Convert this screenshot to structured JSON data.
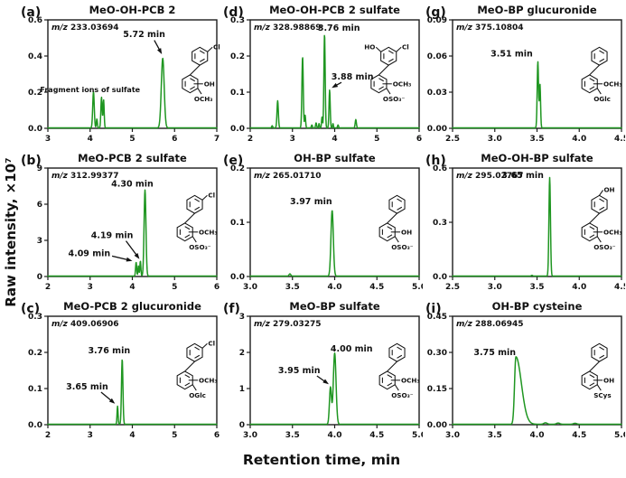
{
  "figure": {
    "ylabel": "Raw intensity, ×10⁷",
    "xlabel": "Retention time, min",
    "colors": {
      "trace": "#1f9621",
      "axis": "#1c1c1c",
      "text": "#111111",
      "background": "#ffffff"
    }
  },
  "chart_data": [
    {
      "panel": "(a)",
      "type": "line",
      "title": "MeO-OH-PCB 2",
      "mz_label": "m/z",
      "mz_value": "233.03694",
      "xlim": [
        3,
        7
      ],
      "ylim": [
        0,
        0.6
      ],
      "xticks": [
        "3",
        "4",
        "5",
        "6",
        "7"
      ],
      "yticks": [
        "0.0",
        "0.2",
        "0.4",
        "0.6"
      ],
      "peaks": [
        {
          "rt": 4.08,
          "h": 0.2,
          "w": 0.018
        },
        {
          "rt": 4.16,
          "h": 0.05,
          "w": 0.012
        },
        {
          "rt": 4.27,
          "h": 0.17,
          "w": 0.015
        },
        {
          "rt": 4.32,
          "h": 0.155,
          "w": 0.013
        },
        {
          "rt": 5.72,
          "h": 0.385,
          "w": 0.034
        }
      ],
      "annotations": [
        {
          "text": "5.72 min",
          "tx": 5.28,
          "ty": 0.52,
          "arrow": [
            5.52,
            0.487,
            5.7,
            0.41
          ]
        },
        {
          "text": "Fragment ions of sulfate",
          "tx": 4.0,
          "ty": 0.215,
          "small": true
        }
      ],
      "structure": {
        "top_right": "Cl",
        "ring_right": "OH",
        "ring_bottom": "OCH₃"
      },
      "spos": [
        0.88,
        0.5
      ]
    },
    {
      "panel": "(d)",
      "type": "line",
      "title": "MeO-OH-PCB 2 sulfate",
      "mz_label": "m/z",
      "mz_value": "328.98869",
      "xlim": [
        2,
        6
      ],
      "ylim": [
        0,
        0.3
      ],
      "xticks": [
        "2",
        "3",
        "4",
        "5",
        "6"
      ],
      "yticks": [
        "0.0",
        "0.1",
        "0.2",
        "0.3"
      ],
      "peaks": [
        {
          "rt": 2.52,
          "h": 0.006,
          "w": 0.012
        },
        {
          "rt": 2.65,
          "h": 0.075,
          "w": 0.016
        },
        {
          "rt": 3.24,
          "h": 0.197,
          "w": 0.016
        },
        {
          "rt": 3.3,
          "h": 0.035,
          "w": 0.012
        },
        {
          "rt": 3.46,
          "h": 0.008,
          "w": 0.012
        },
        {
          "rt": 3.56,
          "h": 0.014,
          "w": 0.012
        },
        {
          "rt": 3.63,
          "h": 0.012,
          "w": 0.01
        },
        {
          "rt": 3.7,
          "h": 0.03,
          "w": 0.011
        },
        {
          "rt": 3.76,
          "h": 0.26,
          "w": 0.015
        },
        {
          "rt": 3.88,
          "h": 0.105,
          "w": 0.014
        },
        {
          "rt": 3.96,
          "h": 0.012,
          "w": 0.01
        },
        {
          "rt": 4.08,
          "h": 0.008,
          "w": 0.012
        },
        {
          "rt": 4.5,
          "h": 0.023,
          "w": 0.014
        }
      ],
      "annotations": [
        {
          "text": "3.76 min",
          "tx": 4.1,
          "ty": 0.277
        },
        {
          "text": "3.88 min",
          "tx": 4.42,
          "ty": 0.143,
          "arrow": [
            4.16,
            0.127,
            3.93,
            0.112
          ]
        }
      ],
      "structure": {
        "top_left": "HO",
        "top_right": "Cl",
        "ring_right": "OCH₃",
        "ring_bottom": "OSO₃⁻"
      },
      "spos": [
        0.8,
        0.5
      ]
    },
    {
      "panel": "(g)",
      "type": "line",
      "title": "MeO-BP glucuronide",
      "mz_label": "m/z",
      "mz_value": "375.10804",
      "xlim": [
        2.5,
        4.5
      ],
      "ylim": [
        0,
        0.09
      ],
      "xticks": [
        "2.5",
        "3.0",
        "3.5",
        "4.0",
        "4.5"
      ],
      "yticks": [
        "0.00",
        "0.03",
        "0.06",
        "0.09"
      ],
      "peaks": [
        {
          "rt": 3.51,
          "h": 0.055,
          "w": 0.008
        },
        {
          "rt": 3.535,
          "h": 0.036,
          "w": 0.007
        }
      ],
      "annotations": [
        {
          "text": "3.51 min",
          "tx": 3.2,
          "ty": 0.062
        }
      ],
      "structure": {
        "ring_right": "OCH₃",
        "ring_bottom": "OGlc"
      },
      "spos": [
        0.85,
        0.5
      ]
    },
    {
      "panel": "(b)",
      "type": "line",
      "title": "MeO-PCB 2 sulfate",
      "mz_label": "m/z",
      "mz_value": "312.99377",
      "xlim": [
        2,
        6
      ],
      "ylim": [
        0,
        9
      ],
      "xticks": [
        "2",
        "3",
        "4",
        "5",
        "6"
      ],
      "yticks": [
        "0",
        "3",
        "6",
        "9"
      ],
      "peaks": [
        {
          "rt": 4.09,
          "h": 1.15,
          "w": 0.013
        },
        {
          "rt": 4.145,
          "h": 0.85,
          "w": 0.011
        },
        {
          "rt": 4.19,
          "h": 1.25,
          "w": 0.012
        },
        {
          "rt": 4.3,
          "h": 7.15,
          "w": 0.022
        }
      ],
      "annotations": [
        {
          "text": "4.30 min",
          "tx": 4.0,
          "ty": 7.7
        },
        {
          "text": "4.19 min",
          "tx": 3.52,
          "ty": 3.4,
          "arrow": [
            3.85,
            2.95,
            4.17,
            1.45
          ]
        },
        {
          "text": "4.09 min",
          "tx": 2.98,
          "ty": 1.9,
          "arrow": [
            3.52,
            1.7,
            4.0,
            1.3
          ]
        }
      ],
      "structure": {
        "top_right": "Cl",
        "ring_right": "OCH₃",
        "ring_bottom": "OSO₃⁻"
      },
      "spos": [
        0.85,
        0.5
      ]
    },
    {
      "panel": "(e)",
      "type": "line",
      "title": "OH-BP sulfate",
      "mz_label": "m/z",
      "mz_value": "265.01710",
      "xlim": [
        3,
        5
      ],
      "ylim": [
        0,
        0.2
      ],
      "xticks": [
        "3.0",
        "3.5",
        "4.0",
        "4.5",
        "5.0"
      ],
      "yticks": [
        "0.0",
        "0.1",
        "0.2"
      ],
      "peaks": [
        {
          "rt": 3.47,
          "h": 0.004,
          "w": 0.01
        },
        {
          "rt": 3.97,
          "h": 0.121,
          "w": 0.014
        }
      ],
      "annotations": [
        {
          "text": "3.97 min",
          "tx": 3.72,
          "ty": 0.138
        }
      ],
      "structure": {
        "ring_right": "OH",
        "ring_bottom": "OSO₃⁻"
      },
      "spos": [
        0.85,
        0.5
      ]
    },
    {
      "panel": "(h)",
      "type": "line",
      "title": "MeO-OH-BP sulfate",
      "mz_label": "m/z",
      "mz_value": "295.02767",
      "xlim": [
        2.5,
        4.5
      ],
      "ylim": [
        0,
        0.6
      ],
      "xticks": [
        "2.5",
        "3.0",
        "3.5",
        "4.0",
        "4.5"
      ],
      "yticks": [
        "0.0",
        "0.3",
        "0.6"
      ],
      "peaks": [
        {
          "rt": 3.44,
          "h": 0.004,
          "w": 0.008
        },
        {
          "rt": 3.65,
          "h": 0.545,
          "w": 0.009
        }
      ],
      "annotations": [
        {
          "text": "3.65 min",
          "tx": 3.33,
          "ty": 0.56
        }
      ],
      "structure": {
        "top": "OH",
        "ring_right": "OCH₃",
        "ring_bottom": "OSO₃⁻"
      },
      "spos": [
        0.85,
        0.5
      ]
    },
    {
      "panel": "(c)",
      "type": "line",
      "title": "MeO-PCB 2 glucuronide",
      "mz_label": "m/z",
      "mz_value": "409.06906",
      "xlim": [
        2,
        6
      ],
      "ylim": [
        0,
        0.3
      ],
      "xticks": [
        "2",
        "3",
        "4",
        "5",
        "6"
      ],
      "yticks": [
        "0.0",
        "0.1",
        "0.2",
        "0.3"
      ],
      "peaks": [
        {
          "rt": 3.65,
          "h": 0.05,
          "w": 0.012
        },
        {
          "rt": 3.76,
          "h": 0.18,
          "w": 0.017
        }
      ],
      "annotations": [
        {
          "text": "3.76 min",
          "tx": 3.45,
          "ty": 0.205
        },
        {
          "text": "3.65 min",
          "tx": 2.93,
          "ty": 0.105,
          "arrow": [
            3.26,
            0.09,
            3.59,
            0.058
          ]
        }
      ],
      "structure": {
        "top_right": "Cl",
        "ring_right": "OCH₃",
        "ring_bottom": "OGlc"
      },
      "spos": [
        0.85,
        0.5
      ]
    },
    {
      "panel": "(f)",
      "type": "line",
      "title": "MeO-BP sulfate",
      "mz_label": "m/z",
      "mz_value": "279.03275",
      "xlim": [
        3,
        5
      ],
      "ylim": [
        0,
        3
      ],
      "xticks": [
        "3.0",
        "3.5",
        "4.0",
        "4.5",
        "5.0"
      ],
      "yticks": [
        "0",
        "1",
        "2",
        "3"
      ],
      "peaks": [
        {
          "rt": 3.95,
          "h": 1.02,
          "w": 0.012
        },
        {
          "rt": 4.0,
          "h": 1.97,
          "w": 0.016
        }
      ],
      "annotations": [
        {
          "text": "4.00 min",
          "tx": 4.2,
          "ty": 2.1
        },
        {
          "text": "3.95 min",
          "tx": 3.58,
          "ty": 1.5,
          "arrow": [
            3.79,
            1.35,
            3.93,
            1.12
          ]
        }
      ],
      "structure": {
        "ring_right": "OCH₃",
        "ring_bottom": "OSO₃⁻"
      },
      "spos": [
        0.85,
        0.5
      ]
    },
    {
      "panel": "(i)",
      "type": "line",
      "title": "OH-BP cysteine",
      "mz_label": "m/z",
      "mz_value": "288.06945",
      "xlim": [
        3,
        5
      ],
      "ylim": [
        0,
        0.45
      ],
      "xticks": [
        "3.0",
        "3.5",
        "4.0",
        "4.5",
        "5.0"
      ],
      "yticks": [
        "0.00",
        "0.15",
        "0.30",
        "0.45"
      ],
      "peaks": [
        {
          "rt": 3.75,
          "h": 0.28,
          "w": 0.016,
          "tail": 0.065
        },
        {
          "rt": 4.1,
          "h": 0.006,
          "w": 0.02
        },
        {
          "rt": 4.25,
          "h": 0.005,
          "w": 0.02
        },
        {
          "rt": 4.45,
          "h": 0.004,
          "w": 0.02
        }
      ],
      "annotations": [
        {
          "text": "3.75 min",
          "tx": 3.5,
          "ty": 0.3
        }
      ],
      "structure": {
        "ring_right": "OH",
        "ring_bottom": "SCys"
      },
      "spos": [
        0.85,
        0.5
      ]
    }
  ]
}
